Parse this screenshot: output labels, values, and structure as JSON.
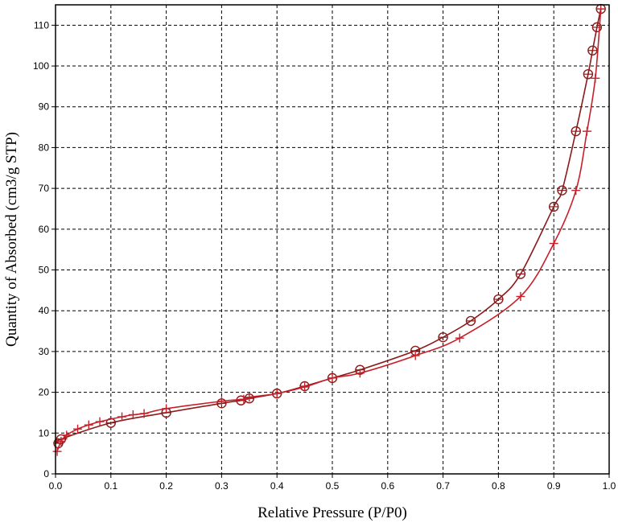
{
  "chart_data": {
    "type": "line",
    "title": "",
    "xlabel": "Relative Pressure (P/P0)",
    "ylabel": "Quantity of Absorbed (cm3/g STP)",
    "xlim": [
      0,
      1.0
    ],
    "ylim": [
      0,
      115
    ],
    "x_ticks": [
      "0.0",
      "0.1",
      "0.2",
      "0.3",
      "0.4",
      "0.5",
      "0.6",
      "0.7",
      "0.8",
      "0.9",
      "1.0"
    ],
    "y_ticks": [
      "0",
      "10",
      "20",
      "30",
      "40",
      "50",
      "60",
      "70",
      "80",
      "90",
      "100",
      "110"
    ],
    "grid": true,
    "legend": "none",
    "series": [
      {
        "marker": "circle",
        "color": "#8b1a1a",
        "x": [
          0.005,
          0.01,
          0.1,
          0.2,
          0.3,
          0.335,
          0.35,
          0.4,
          0.45,
          0.5,
          0.55,
          0.65,
          0.7,
          0.75,
          0.8,
          0.84,
          0.9,
          0.915,
          0.94,
          0.962,
          0.97,
          0.978,
          0.985
        ],
        "y": [
          7.5,
          8.5,
          12.5,
          15.0,
          17.3,
          18.0,
          18.5,
          19.7,
          21.5,
          23.5,
          25.5,
          30.2,
          33.5,
          37.5,
          42.8,
          49.0,
          65.5,
          69.5,
          84.0,
          98.0,
          103.8,
          109.5,
          114.0
        ]
      },
      {
        "marker": "plus",
        "color": "#c8202a",
        "x": [
          0.003,
          0.01,
          0.02,
          0.04,
          0.06,
          0.08,
          0.12,
          0.14,
          0.16,
          0.2,
          0.3,
          0.34,
          0.35,
          0.4,
          0.45,
          0.5,
          0.55,
          0.65,
          0.73,
          0.84,
          0.9,
          0.94,
          0.96,
          0.975,
          0.985
        ],
        "y": [
          5.5,
          8.0,
          9.5,
          11.0,
          12.0,
          12.8,
          14.0,
          14.5,
          14.8,
          16.0,
          17.8,
          18.3,
          18.8,
          19.7,
          21.3,
          23.5,
          24.7,
          29.0,
          33.3,
          43.5,
          56.5,
          69.5,
          84.0,
          97.0,
          114.0
        ]
      }
    ]
  }
}
